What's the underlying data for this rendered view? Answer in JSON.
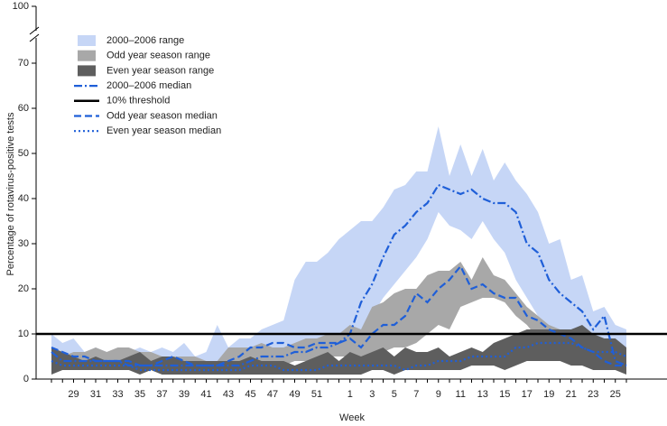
{
  "chart_data": {
    "type": "range-median",
    "y_label": "Percentage of rotavirus-positive tests",
    "x_label": "Week",
    "ylim": [
      0,
      100
    ],
    "yticks": [
      0,
      10,
      20,
      30,
      40,
      50,
      60,
      70,
      100
    ],
    "axis_break": true,
    "categories": [
      null,
      null,
      "29",
      null,
      "31",
      null,
      "33",
      null,
      "35",
      null,
      "37",
      null,
      "39",
      null,
      "41",
      null,
      "43",
      null,
      "45",
      null,
      "47",
      null,
      "49",
      null,
      "51",
      null,
      null,
      "1",
      null,
      "3",
      null,
      "5",
      null,
      "7",
      null,
      "9",
      null,
      "11",
      null,
      "13",
      null,
      "15",
      null,
      "17",
      null,
      "19",
      null,
      "21",
      null,
      "23",
      null,
      "25",
      null
    ],
    "series": [
      {
        "name": "2000–2006 range",
        "kind": "band",
        "color": "#c6d6f6",
        "high": [
          10,
          8,
          9,
          6,
          7,
          6,
          6,
          6,
          7,
          6,
          7,
          6,
          8,
          5,
          6,
          12,
          7,
          9,
          9,
          11,
          12,
          13,
          22,
          26,
          26,
          28,
          31,
          33,
          35,
          35,
          38,
          42,
          43,
          46,
          46,
          56,
          45,
          52,
          45,
          51,
          44,
          48,
          44,
          41,
          37,
          30,
          31,
          22,
          23,
          15,
          16,
          12,
          11
        ],
        "low": [
          6,
          4,
          3,
          3,
          3,
          3,
          3,
          3,
          3,
          2,
          3,
          2,
          3,
          2,
          2,
          2,
          2,
          3,
          3,
          3,
          3,
          4,
          5,
          6,
          6,
          7,
          7,
          9,
          11,
          14,
          18,
          21,
          24,
          27,
          31,
          37,
          34,
          33,
          31,
          35,
          31,
          28,
          22,
          18,
          14,
          12,
          10,
          8,
          6,
          5,
          4,
          3,
          3
        ]
      },
      {
        "name": "Odd year season range",
        "kind": "band",
        "color": "#a8a8a8",
        "high": [
          7,
          5,
          6,
          6,
          7,
          6,
          7,
          7,
          6,
          6,
          5,
          5,
          5,
          5,
          4,
          4,
          7,
          7,
          7,
          8,
          7,
          7,
          8,
          9,
          9,
          10,
          10,
          12,
          11,
          16,
          17,
          19,
          20,
          20,
          23,
          24,
          24,
          26,
          22,
          27,
          23,
          22,
          19,
          16,
          14,
          12,
          11,
          10,
          9,
          8,
          8,
          7,
          6
        ],
        "low": [
          3,
          3,
          3,
          3,
          3,
          3,
          3,
          2,
          2,
          2,
          2,
          2,
          2,
          2,
          2,
          2,
          3,
          3,
          3,
          3,
          3,
          3,
          4,
          4,
          4,
          5,
          5,
          5,
          5,
          5,
          6,
          7,
          7,
          8,
          10,
          12,
          11,
          16,
          17,
          18,
          18,
          17,
          14,
          12,
          9,
          8,
          7,
          6,
          5,
          4,
          4,
          3,
          3
        ]
      },
      {
        "name": "Even year season range",
        "kind": "band",
        "color": "#5e5e5e",
        "high": [
          7,
          6,
          5,
          4,
          5,
          4,
          4,
          5,
          6,
          4,
          5,
          5,
          4,
          4,
          4,
          4,
          4,
          4,
          5,
          4,
          4,
          4,
          3,
          4,
          5,
          6,
          4,
          6,
          5,
          6,
          7,
          5,
          7,
          6,
          6,
          7,
          5,
          6,
          7,
          6,
          8,
          9,
          10,
          11,
          11,
          11,
          11,
          11,
          12,
          10,
          9,
          9,
          7
        ],
        "low": [
          1,
          2,
          2,
          2,
          2,
          2,
          2,
          2,
          1,
          2,
          1,
          1,
          1,
          1,
          1,
          1,
          1,
          1,
          1,
          1,
          1,
          1,
          1,
          1,
          1,
          1,
          1,
          1,
          1,
          2,
          2,
          1,
          2,
          2,
          2,
          2,
          2,
          2,
          3,
          3,
          3,
          2,
          3,
          4,
          4,
          4,
          4,
          3,
          3,
          2,
          2,
          2,
          1
        ]
      },
      {
        "name": "2000–2006 median",
        "kind": "line",
        "style": "dashdot",
        "color": "#1f5fd8",
        "values": [
          6,
          4,
          4,
          4,
          4,
          4,
          4,
          3,
          3,
          3,
          3,
          3,
          3,
          3,
          3,
          3,
          3,
          3,
          4,
          5,
          5,
          5,
          6,
          6,
          7,
          7,
          8,
          10,
          17,
          21,
          27,
          32,
          34,
          37,
          39,
          43,
          42,
          41,
          42,
          40,
          39,
          39,
          37,
          30,
          28,
          22,
          19,
          17,
          15,
          11,
          14,
          4,
          3
        ]
      },
      {
        "name": "10% threshold",
        "kind": "threshold",
        "color": "#000000",
        "value": 10
      },
      {
        "name": "Odd year season median",
        "kind": "line",
        "style": "dashed",
        "color": "#1f5fd8",
        "values": [
          7,
          6,
          5,
          5,
          4,
          4,
          4,
          4,
          3,
          3,
          4,
          5,
          4,
          3,
          3,
          3,
          4,
          5,
          7,
          7,
          8,
          8,
          7,
          7,
          8,
          8,
          8,
          9,
          7,
          10,
          12,
          12,
          14,
          19,
          17,
          20,
          22,
          25,
          20,
          21,
          19,
          18,
          18,
          14,
          13,
          11,
          10,
          9,
          7,
          6,
          4,
          3,
          3
        ]
      },
      {
        "name": "Even year season median",
        "kind": "line",
        "style": "dotted",
        "color": "#1f5fd8",
        "values": [
          4,
          3,
          3,
          3,
          3,
          3,
          3,
          3,
          2,
          2,
          2,
          2,
          2,
          2,
          2,
          2,
          2,
          2,
          3,
          3,
          3,
          2,
          2,
          2,
          2,
          3,
          3,
          3,
          3,
          3,
          3,
          3,
          2,
          3,
          3,
          4,
          4,
          4,
          5,
          5,
          5,
          5,
          7,
          7,
          8,
          8,
          8,
          8,
          7,
          6,
          6,
          6,
          5
        ]
      }
    ]
  }
}
